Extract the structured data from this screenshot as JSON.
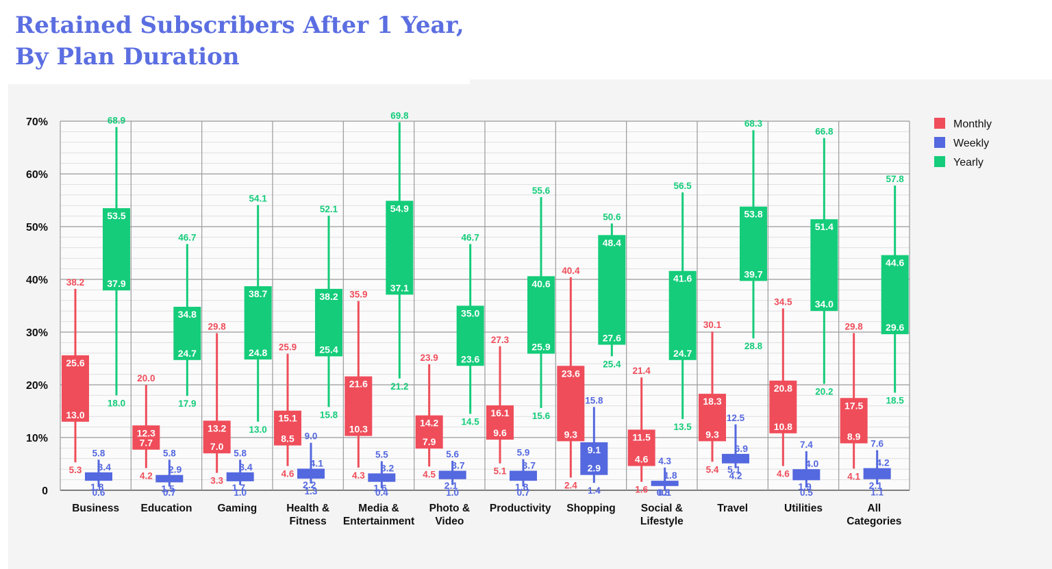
{
  "title_lines": [
    "Retained Subscribers After 1 Year,",
    "By Plan Duration"
  ],
  "chart_data": {
    "type": "box",
    "title": "Retained Subscribers After 1 Year, By Plan Duration",
    "ylim": [
      0,
      70
    ],
    "y_ticks": [
      0,
      10,
      20,
      30,
      40,
      50,
      60,
      70
    ],
    "y_tick_labels": [
      "0",
      "10%",
      "20%",
      "30%",
      "40%",
      "50%",
      "60%",
      "70%"
    ],
    "legend_position": "top-right",
    "grid": true,
    "categories": [
      [
        "Business"
      ],
      [
        "Education"
      ],
      [
        "Gaming"
      ],
      [
        "Health &",
        "Fitness"
      ],
      [
        "Media &",
        "Entertainment"
      ],
      [
        "Photo &",
        "Video"
      ],
      [
        "Productivity"
      ],
      [
        "Shopping"
      ],
      [
        "Social &",
        "Lifestyle"
      ],
      [
        "Travel"
      ],
      [
        "Utilities"
      ],
      [
        "All",
        "Categories"
      ]
    ],
    "series": [
      {
        "name": "Monthly",
        "color": "#ef4d5a",
        "min": [
          "5.3",
          "4.2",
          "3.3",
          "4.6",
          "4.3",
          "4.5",
          "5.1",
          "2.4",
          "1.6",
          "5.4",
          "4.6",
          "4.1"
        ],
        "q1": [
          "13.0",
          "7.7",
          "7.0",
          "8.5",
          "10.3",
          "7.9",
          "9.6",
          "9.3",
          "4.6",
          "9.3",
          "10.8",
          "8.9"
        ],
        "q3": [
          "25.6",
          "12.3",
          "13.2",
          "15.1",
          "21.6",
          "14.2",
          "16.1",
          "23.6",
          "11.5",
          "18.3",
          "20.8",
          "17.5"
        ],
        "max": [
          "38.2",
          "20.0",
          "29.8",
          "25.9",
          "35.9",
          "23.9",
          "27.3",
          "40.4",
          "21.4",
          "30.1",
          "34.5",
          "29.8"
        ]
      },
      {
        "name": "Weekly",
        "color": "#5468df",
        "min": [
          "0.6",
          "0.7",
          "1.0",
          "1.3",
          "0.4",
          "1.0",
          "0.7",
          "1.4",
          "0.1",
          "4.2",
          "0.5",
          "1.1"
        ],
        "q1": [
          "1.8",
          "1.5",
          "1.7",
          "2.2",
          "1.6",
          "2.1",
          "1.8",
          "2.9",
          "0.8",
          "5.1",
          "1.9",
          "2.1"
        ],
        "q3": [
          "3.4",
          "2.9",
          "3.4",
          "4.1",
          "3.2",
          "3.7",
          "3.7",
          "9.1",
          "1.8",
          "6.9",
          "4.0",
          "4.2"
        ],
        "max": [
          "5.8",
          "5.8",
          "5.8",
          "9.0",
          "5.5",
          "5.6",
          "5.9",
          "15.8",
          "4.3",
          "12.5",
          "7.4",
          "7.6"
        ]
      },
      {
        "name": "Yearly",
        "color": "#14cc7a",
        "min": [
          "18.0",
          "17.9",
          "13.0",
          "15.8",
          "21.2",
          "14.5",
          "15.6",
          "25.4",
          "13.5",
          "28.8",
          "20.2",
          "18.5"
        ],
        "q1": [
          "37.9",
          "24.7",
          "24.8",
          "25.4",
          "37.1",
          "23.6",
          "25.9",
          "27.6",
          "24.7",
          "39.7",
          "34.0",
          "29.6"
        ],
        "q3": [
          "53.5",
          "34.8",
          "38.7",
          "38.2",
          "54.9",
          "35.0",
          "40.6",
          "48.4",
          "41.6",
          "53.8",
          "51.4",
          "44.6"
        ],
        "max": [
          "68.9",
          "46.7",
          "54.1",
          "52.1",
          "69.8",
          "46.7",
          "55.6",
          "50.6",
          "56.5",
          "68.3",
          "66.8",
          "57.8"
        ]
      }
    ]
  }
}
